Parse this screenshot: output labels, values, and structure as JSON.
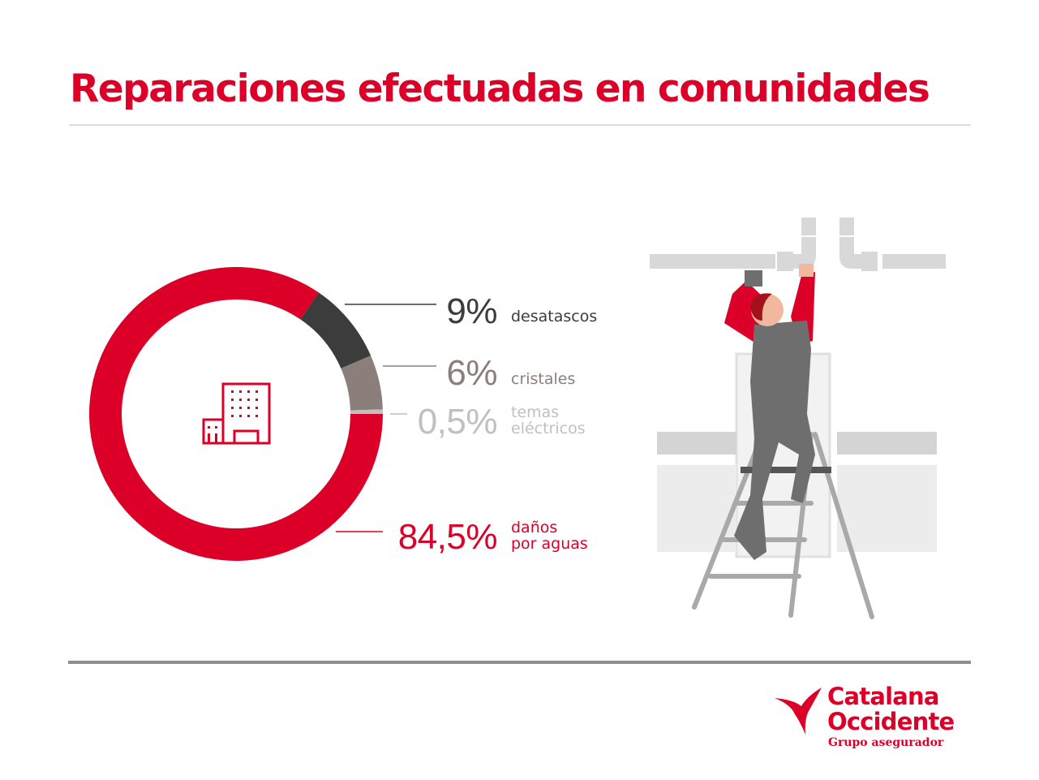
{
  "title": "Reparaciones efectuadas en comunidades",
  "chart_data": {
    "type": "pie",
    "variant": "donut",
    "title": "Reparaciones efectuadas en comunidades",
    "slices": [
      {
        "value": 9,
        "value_label": "9%",
        "label_lines": [
          "desatascos"
        ],
        "color": "#3c3c3c"
      },
      {
        "value": 6,
        "value_label": "6%",
        "label_lines": [
          "cristales"
        ],
        "color": "#8c7f7b"
      },
      {
        "value": 0.5,
        "value_label": "0,5%",
        "label_lines": [
          "temas",
          "eléctricos"
        ],
        "color": "#c0c0c0"
      },
      {
        "value": 84.5,
        "value_label": "84,5%",
        "label_lines": [
          "daños",
          "por aguas"
        ],
        "color": "#dc0028"
      }
    ],
    "center_icon": "building-icon",
    "legend_position": "right"
  },
  "illustration": {
    "icon": "plumber-on-ladder-illustration"
  },
  "logo": {
    "name_lines": [
      "Catalana",
      "Occidente"
    ],
    "subtitle": "Grupo asegurador",
    "icon": "catalana-occidente-logo-icon",
    "color": "#dc0028"
  }
}
